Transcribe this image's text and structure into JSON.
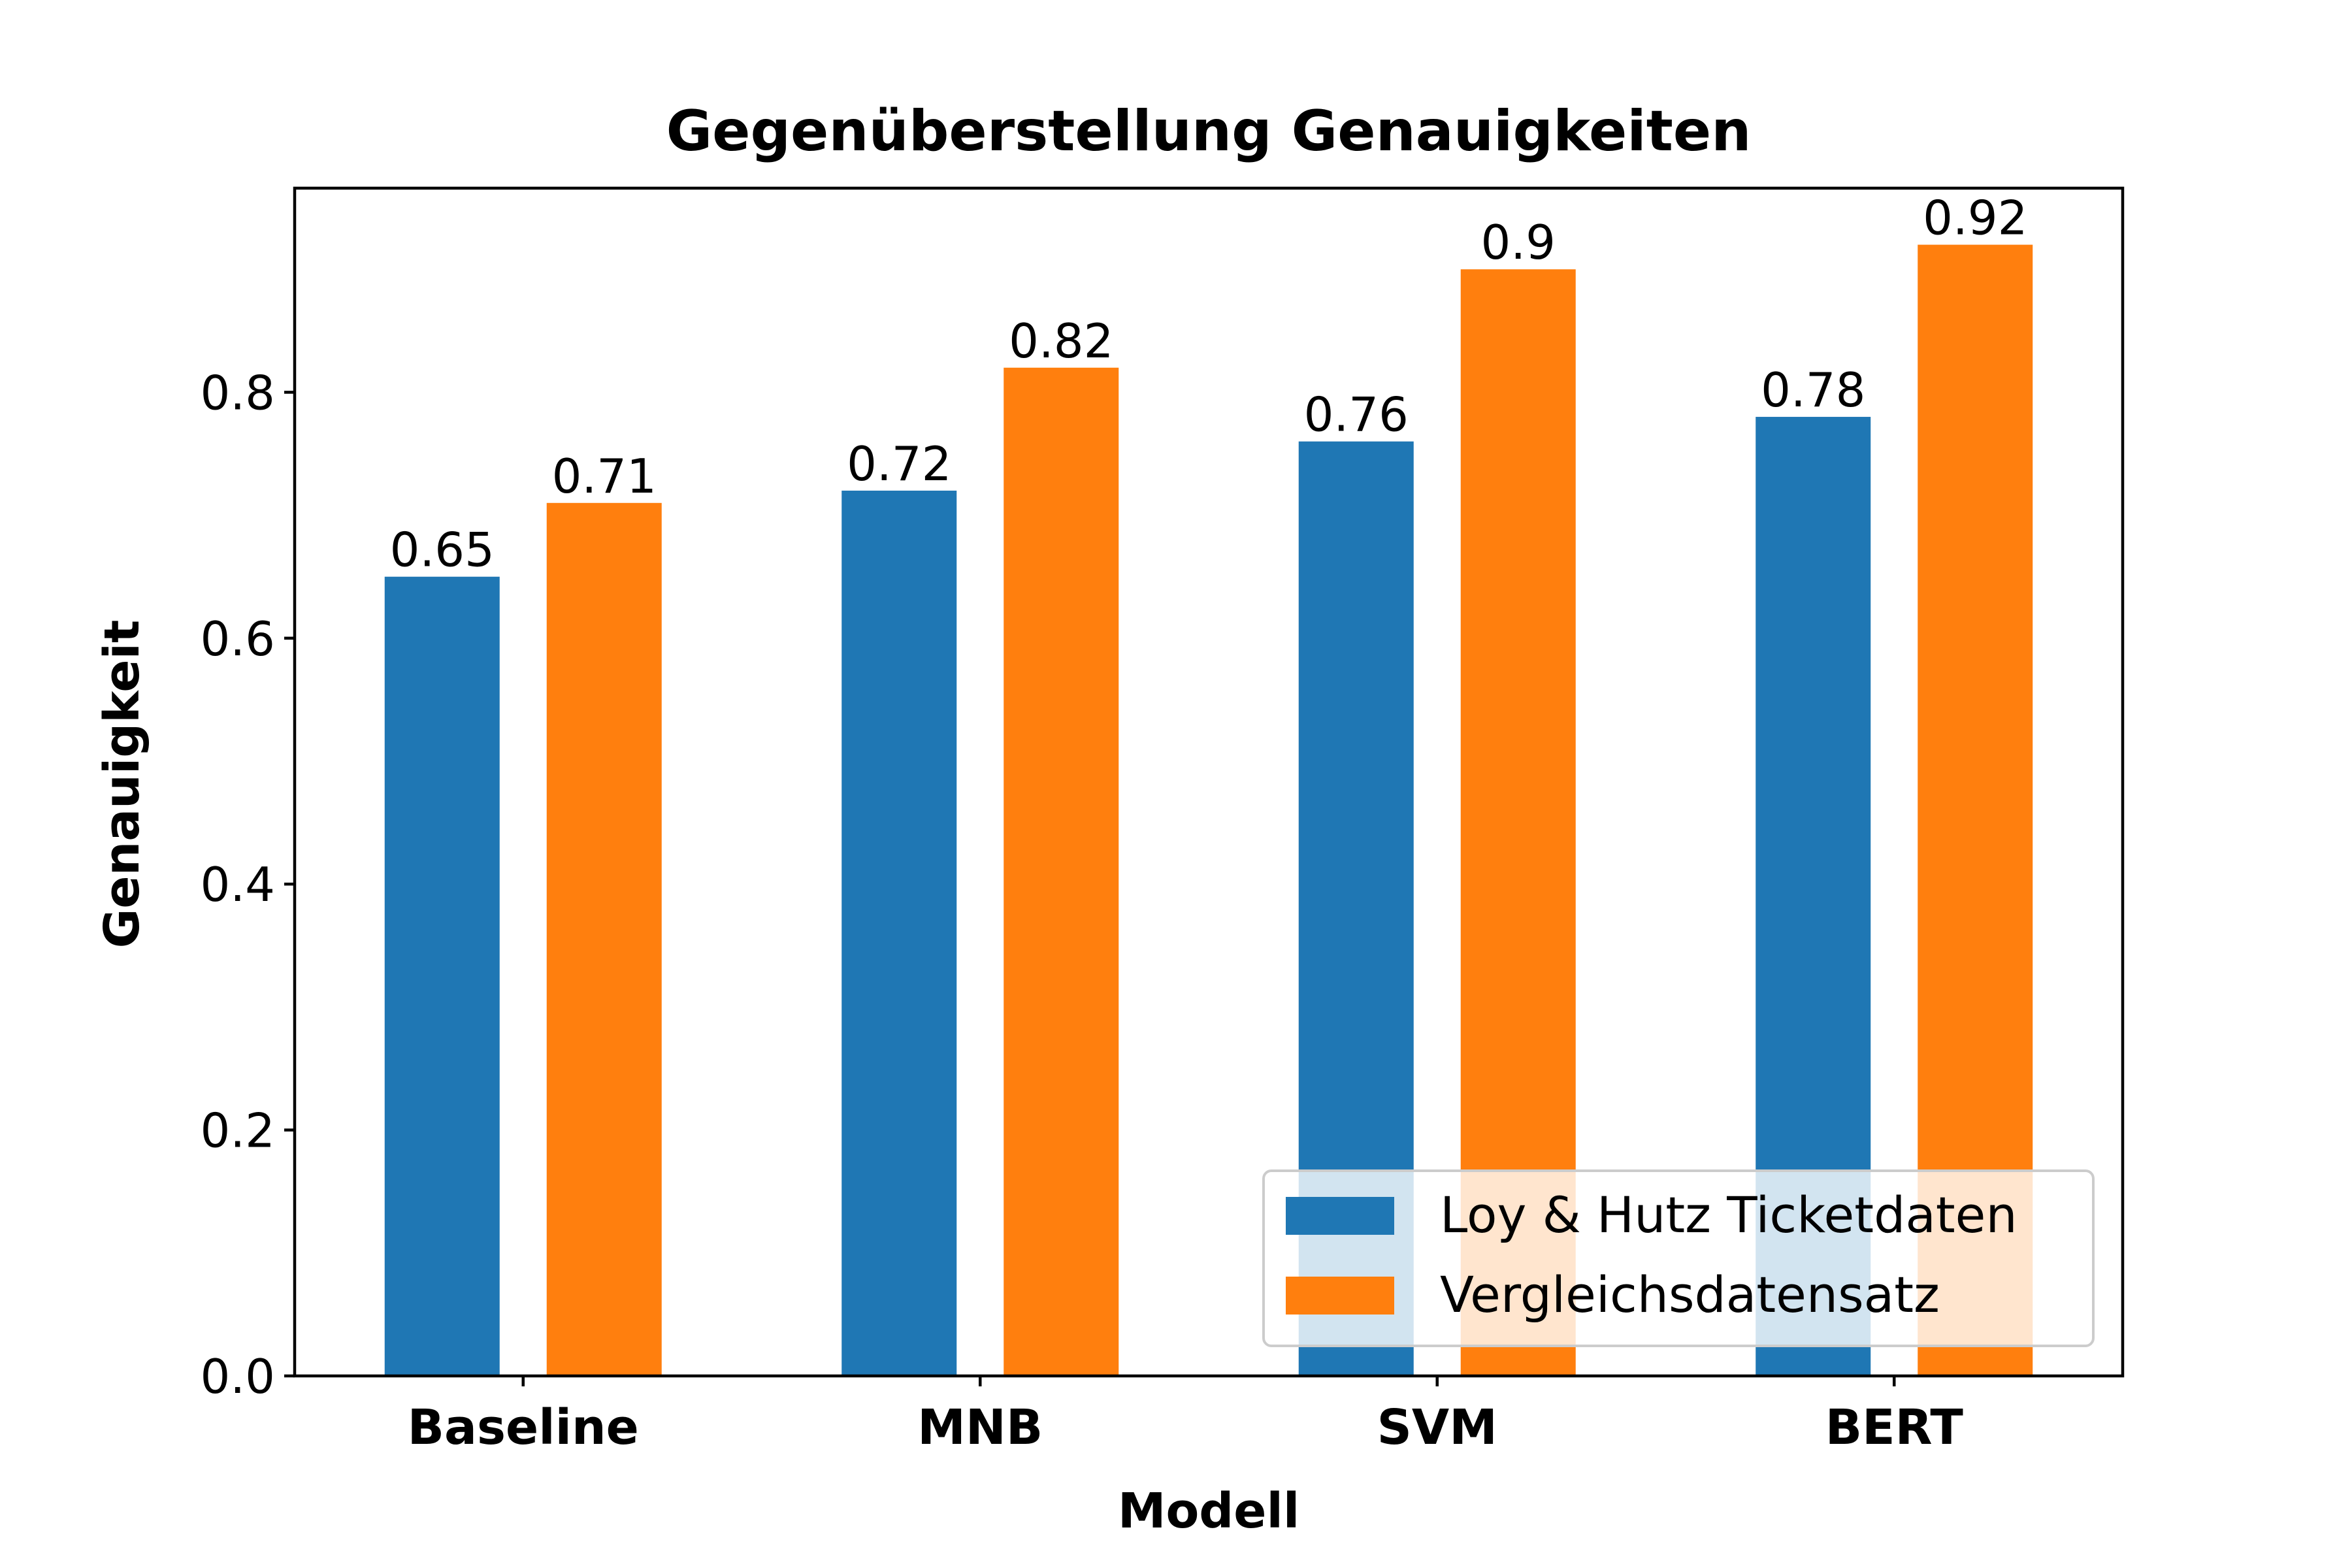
{
  "chart_data": {
    "type": "bar",
    "title": "Gegenüberstellung Genauigkeiten",
    "xlabel": "Modell",
    "ylabel": "Genauigkeit",
    "categories": [
      "Baseline",
      "MNB",
      "SVM",
      "BERT"
    ],
    "series": [
      {
        "name": "Loy & Hutz Ticketdaten",
        "values": [
          0.65,
          0.72,
          0.76,
          0.78
        ],
        "color": "#1f77b4"
      },
      {
        "name": "Vergleichsdatensatz",
        "values": [
          0.71,
          0.82,
          0.9,
          0.92
        ],
        "color": "#ff7f0e"
      }
    ],
    "ylim": [
      0,
      0.966
    ],
    "yticks": [
      0.0,
      0.2,
      0.4,
      0.6,
      0.8
    ],
    "ytick_labels": [
      "0.0",
      "0.2",
      "0.4",
      "0.6",
      "0.8"
    ],
    "data_labels": [
      [
        "0.65",
        "0.72",
        "0.76",
        "0.78"
      ],
      [
        "0.71",
        "0.82",
        "0.9",
        "0.92"
      ]
    ],
    "grid": false,
    "legend_position": "lower-right"
  }
}
